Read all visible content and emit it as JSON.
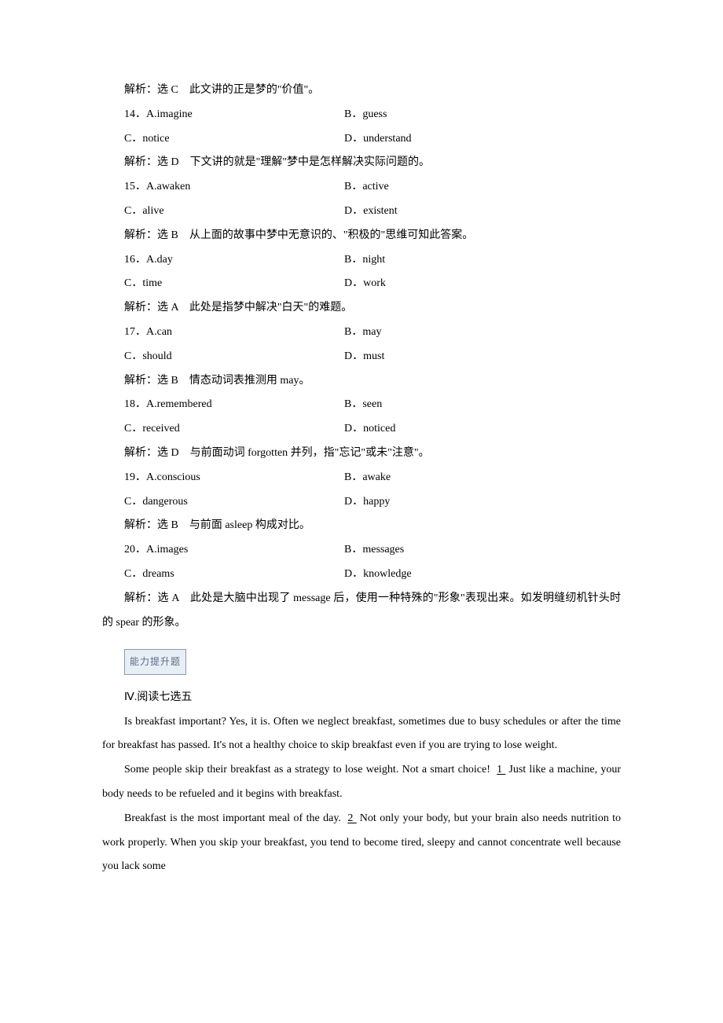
{
  "items": [
    {
      "analysis": "解析：选 C　此文讲的正是梦的\"价值\"。",
      "num": "14．",
      "a": "A.imagine",
      "b": "B．guess",
      "c": "C．notice",
      "d": "D．understand",
      "analysis2": "解析：选 D　下文讲的就是\"理解\"梦中是怎样解决实际问题的。"
    },
    {
      "num": "15．",
      "a": "A.awaken",
      "b": "B．active",
      "c": "C．alive",
      "d": "D．existent",
      "analysis2": "解析：选 B　从上面的故事中梦中无意识的、\"积极的\"思维可知此答案。"
    },
    {
      "num": "16．",
      "a": "A.day",
      "b": "B．night",
      "c": "C．time",
      "d": "D．work",
      "analysis2": "解析：选 A　此处是指梦中解决\"白天\"的难题。"
    },
    {
      "num": "17．",
      "a": "A.can",
      "b": "B．may",
      "c": "C．should",
      "d": "D．must",
      "analysis2": "解析：选 B　情态动词表推测用 may。"
    },
    {
      "num": "18．",
      "a": "A.remembered",
      "b": "B．seen",
      "c": "C．received",
      "d": "D．noticed",
      "analysis2": "解析：选 D　与前面动词 forgotten 并列，指\"忘记\"或未\"注意\"。"
    },
    {
      "num": "19．",
      "a": "A.conscious",
      "b": "B．awake",
      "c": "C．dangerous",
      "d": "D．happy",
      "analysis2": "解析：选 B　与前面 asleep 构成对比。"
    },
    {
      "num": "20．",
      "a": "A.images",
      "b": "B．messages",
      "c": "C．dreams",
      "d": "D．knowledge",
      "analysis2": "解析：选 A　此处是大脑中出现了 message 后，使用一种特殊的\"形象\"表现出来。如发明缝纫机针头时的 spear 的形象。"
    }
  ],
  "badge_label": "能力提升题",
  "section_title": "Ⅳ.阅读七选五",
  "passage": {
    "p1": "Is breakfast important? Yes, it is. Often we neglect breakfast, sometimes due to busy schedules or after the time for breakfast has passed. It's not a healthy choice to skip breakfast even if you are trying to lose weight.",
    "p2a": "Some people skip their breakfast as a strategy to lose weight. Not a smart choice! ",
    "blank1": "  1  ",
    "p2b": " Just like a machine, your body needs to be refueled and it begins with breakfast.",
    "p3a": "Breakfast is the most important meal of the day. ",
    "blank2": "  2  ",
    "p3b": " Not only your body, but your brain also needs nutrition to work properly. When you skip your breakfast, you tend to become tired, sleepy and cannot concentrate well because you lack some"
  }
}
